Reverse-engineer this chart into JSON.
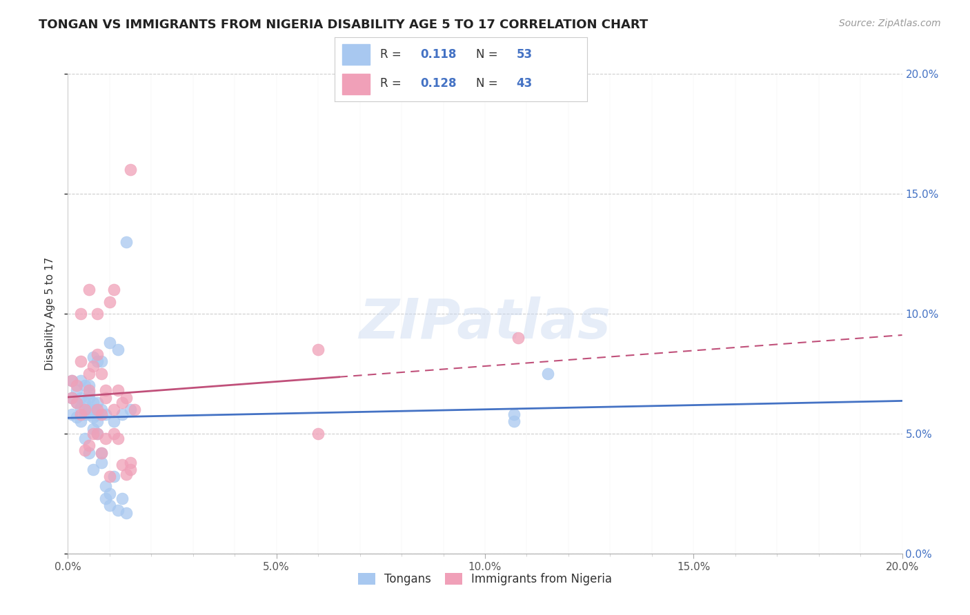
{
  "title": "TONGAN VS IMMIGRANTS FROM NIGERIA DISABILITY AGE 5 TO 17 CORRELATION CHART",
  "source": "Source: ZipAtlas.com",
  "ylabel": "Disability Age 5 to 17",
  "legend_label1": "Tongans",
  "legend_label2": "Immigrants from Nigeria",
  "R1": 0.118,
  "N1": 53,
  "R2": 0.128,
  "N2": 43,
  "color1": "#a8c8f0",
  "color2": "#f0a0b8",
  "line_color1": "#4472c4",
  "line_color2": "#c0507a",
  "xmin": 0.0,
  "xmax": 0.2,
  "ymin": 0.0,
  "ymax": 0.2,
  "background_color": "#ffffff",
  "watermark": "ZIPatlas",
  "tongans_x": [
    0.001,
    0.001,
    0.001,
    0.002,
    0.002,
    0.002,
    0.003,
    0.003,
    0.003,
    0.003,
    0.004,
    0.004,
    0.004,
    0.004,
    0.005,
    0.005,
    0.005,
    0.005,
    0.005,
    0.005,
    0.006,
    0.006,
    0.006,
    0.006,
    0.006,
    0.006,
    0.007,
    0.007,
    0.007,
    0.007,
    0.007,
    0.008,
    0.008,
    0.008,
    0.008,
    0.009,
    0.009,
    0.009,
    0.01,
    0.01,
    0.01,
    0.011,
    0.011,
    0.012,
    0.012,
    0.013,
    0.013,
    0.014,
    0.014,
    0.015,
    0.107,
    0.107,
    0.115
  ],
  "tongans_y": [
    0.065,
    0.072,
    0.058,
    0.068,
    0.057,
    0.063,
    0.055,
    0.061,
    0.065,
    0.072,
    0.048,
    0.058,
    0.063,
    0.07,
    0.042,
    0.058,
    0.06,
    0.065,
    0.067,
    0.07,
    0.035,
    0.052,
    0.057,
    0.06,
    0.063,
    0.082,
    0.05,
    0.055,
    0.058,
    0.063,
    0.08,
    0.038,
    0.042,
    0.06,
    0.08,
    0.023,
    0.028,
    0.058,
    0.02,
    0.025,
    0.088,
    0.032,
    0.055,
    0.018,
    0.085,
    0.023,
    0.058,
    0.017,
    0.13,
    0.06,
    0.055,
    0.058,
    0.075
  ],
  "nigeria_x": [
    0.001,
    0.001,
    0.002,
    0.002,
    0.003,
    0.003,
    0.003,
    0.004,
    0.004,
    0.005,
    0.005,
    0.005,
    0.005,
    0.006,
    0.006,
    0.007,
    0.007,
    0.007,
    0.007,
    0.008,
    0.008,
    0.008,
    0.009,
    0.009,
    0.009,
    0.01,
    0.01,
    0.011,
    0.011,
    0.011,
    0.012,
    0.012,
    0.013,
    0.013,
    0.014,
    0.014,
    0.015,
    0.015,
    0.015,
    0.016,
    0.06,
    0.06,
    0.108
  ],
  "nigeria_y": [
    0.065,
    0.072,
    0.063,
    0.07,
    0.058,
    0.1,
    0.08,
    0.043,
    0.06,
    0.045,
    0.068,
    0.075,
    0.11,
    0.05,
    0.078,
    0.05,
    0.06,
    0.083,
    0.1,
    0.042,
    0.058,
    0.075,
    0.048,
    0.065,
    0.068,
    0.032,
    0.105,
    0.05,
    0.06,
    0.11,
    0.048,
    0.068,
    0.037,
    0.063,
    0.033,
    0.065,
    0.035,
    0.038,
    0.16,
    0.06,
    0.05,
    0.085,
    0.09
  ]
}
